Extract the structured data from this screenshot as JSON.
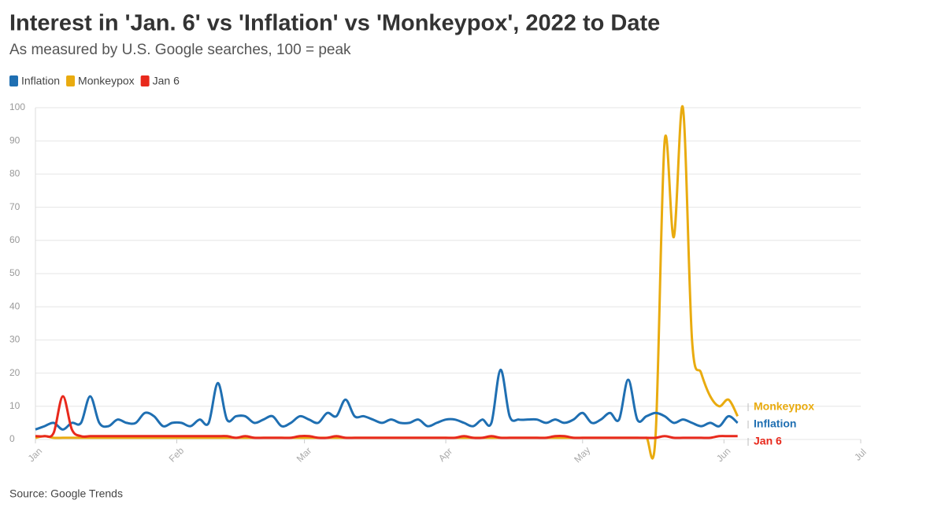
{
  "chart_data": {
    "type": "line",
    "title": "Interest in 'Jan. 6' vs 'Inflation' vs 'Monkeypox', 2022 to Date",
    "subtitle": "As measured by U.S. Google searches, 100 = peak",
    "source": "Source: Google Trends",
    "x": [
      0,
      2,
      4,
      6,
      8,
      10,
      12,
      14,
      16,
      18,
      20,
      22,
      24,
      26,
      28,
      30,
      32,
      34,
      36,
      38,
      40,
      42,
      44,
      46,
      48,
      50,
      52,
      54,
      56,
      58,
      60,
      62,
      64,
      66,
      68,
      70,
      72,
      74,
      76,
      78,
      80,
      82,
      84,
      86,
      88,
      90,
      92,
      94,
      96,
      98,
      100,
      102,
      104,
      106,
      108,
      110,
      112,
      114,
      116,
      118,
      120,
      122,
      124,
      126,
      128,
      130,
      132,
      134,
      136,
      138,
      140,
      142,
      144,
      146,
      148,
      150,
      152,
      154
    ],
    "series": [
      {
        "name": "Inflation",
        "color": "#1f6fb2",
        "values": [
          3,
          4,
          5,
          3,
          5,
          5,
          13,
          5,
          4,
          6,
          5,
          5,
          8,
          7,
          4,
          5,
          5,
          4,
          6,
          5,
          17,
          6,
          7,
          7,
          5,
          6,
          7,
          4,
          5,
          7,
          6,
          5,
          8,
          7,
          12,
          7,
          7,
          6,
          5,
          6,
          5,
          5,
          6,
          4,
          5,
          6,
          6,
          5,
          4,
          6,
          5,
          21,
          7,
          6,
          6,
          6,
          5,
          6,
          5,
          6,
          8,
          5,
          6,
          8,
          6,
          18,
          6,
          7,
          8,
          7,
          5,
          6,
          5,
          4,
          5,
          4,
          7,
          5
        ]
      },
      {
        "name": "Monkeypox",
        "color": "#e9ab0f",
        "values": [
          0.5,
          1,
          0.5,
          0.5,
          0.5,
          0.5,
          0.5,
          0.5,
          0.5,
          0.5,
          0.5,
          0.5,
          0.5,
          0.5,
          0.5,
          0.5,
          0.5,
          0.5,
          0.5,
          0.5,
          0.5,
          0.5,
          0.5,
          0.5,
          0.5,
          0.5,
          0.5,
          0.5,
          0.5,
          0.5,
          0.5,
          0.5,
          0.5,
          0.5,
          0.5,
          0.5,
          0.5,
          0.5,
          0.5,
          0.5,
          0.5,
          0.5,
          0.5,
          0.5,
          0.5,
          0.5,
          0.5,
          0.5,
          0.5,
          0.5,
          0.5,
          0.5,
          0.5,
          0.5,
          0.5,
          0.5,
          0.5,
          0.5,
          0.5,
          0.5,
          0.5,
          0.5,
          0.5,
          0.5,
          0.5,
          0.5,
          0.5,
          0.5,
          1,
          90,
          61,
          100,
          30,
          20,
          13,
          10,
          12,
          7
        ]
      },
      {
        "name": "Jan 6",
        "color": "#e8291c",
        "values": [
          1,
          1,
          2,
          13,
          3,
          1,
          1,
          1,
          1,
          1,
          1,
          1,
          1,
          1,
          1,
          1,
          1,
          1,
          1,
          1,
          1,
          1,
          0.5,
          1,
          0.5,
          0.5,
          0.5,
          0.5,
          0.5,
          1,
          1,
          0.5,
          0.5,
          1,
          0.5,
          0.5,
          0.5,
          0.5,
          0.5,
          0.5,
          0.5,
          0.5,
          0.5,
          0.5,
          0.5,
          0.5,
          0.5,
          1,
          0.5,
          0.5,
          1,
          0.5,
          0.5,
          0.5,
          0.5,
          0.5,
          0.5,
          1,
          1,
          0.5,
          0.5,
          0.5,
          0.5,
          0.5,
          0.5,
          0.5,
          0.5,
          0.5,
          0.5,
          1,
          0.5,
          0.5,
          0.5,
          0.5,
          0.5,
          1,
          1,
          1
        ]
      }
    ],
    "xlim": [
      0,
      181
    ],
    "xticks": [
      {
        "value": 0,
        "label": "Jan"
      },
      {
        "value": 31,
        "label": "Feb"
      },
      {
        "value": 59,
        "label": "Mar"
      },
      {
        "value": 90,
        "label": "Apr"
      },
      {
        "value": 120,
        "label": "May"
      },
      {
        "value": 151,
        "label": "Jun"
      },
      {
        "value": 181,
        "label": "Jul"
      }
    ],
    "ylim": [
      0,
      100
    ],
    "yticks": [
      0,
      10,
      20,
      30,
      40,
      50,
      60,
      70,
      80,
      90,
      100
    ],
    "grid": true
  }
}
